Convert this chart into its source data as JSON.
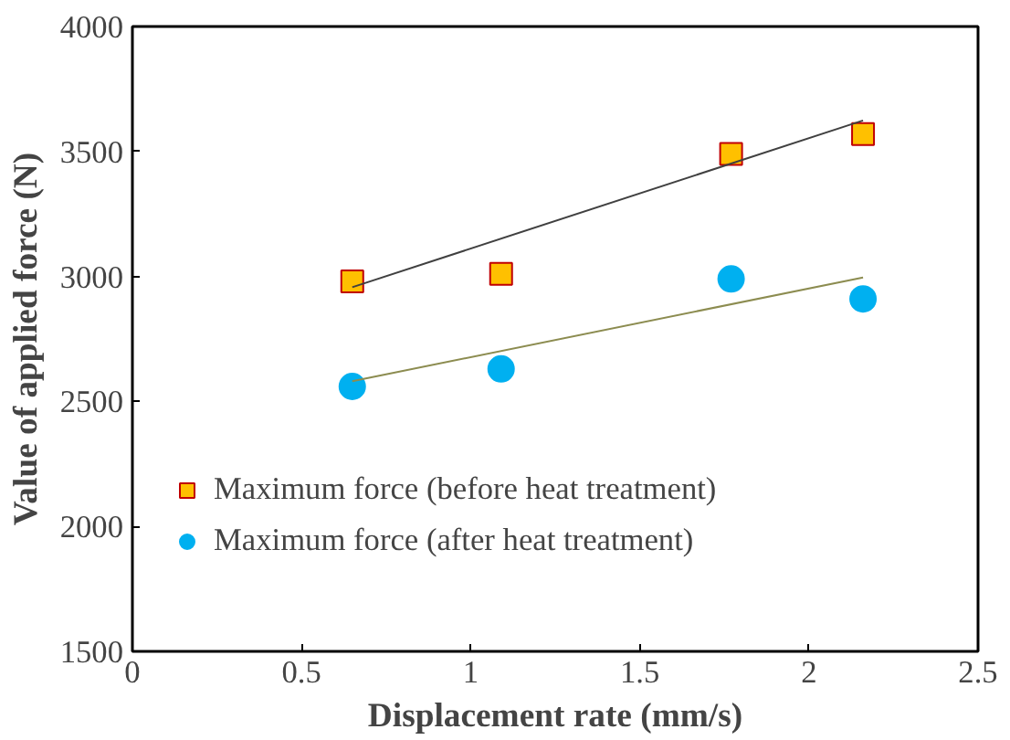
{
  "chart_data": {
    "type": "scatter",
    "xlabel": "Displacement rate (mm/s)",
    "ylabel": "Value of applied force (N)",
    "xlim": [
      0,
      2.5
    ],
    "xticks": [
      0,
      0.5,
      1,
      1.5,
      2,
      2.5
    ],
    "ylim": [
      1500,
      4000
    ],
    "yticks": [
      1500,
      2000,
      2500,
      3000,
      3500,
      4000
    ],
    "grid": false,
    "legend": "bottom left",
    "series": [
      {
        "name": "Maximum force (before heat treatment)",
        "color": "#ffc000",
        "marker": "square",
        "x": [
          0.65,
          1.09,
          1.77,
          2.16
        ],
        "values": [
          2980,
          3010,
          3490,
          3570
        ]
      },
      {
        "name": "Maximum force (after heat treatment)",
        "color": "#00b0f0",
        "marker": "circle",
        "x": [
          0.65,
          1.09,
          1.77,
          2.16
        ],
        "values": [
          2560,
          2630,
          2990,
          2910
        ]
      },
      {
        "type": "line",
        "color": "#404040",
        "x": [
          0.65,
          2.16
        ],
        "values": [
          2957,
          3624
        ]
      },
      {
        "type": "line",
        "color": "#8c8c50",
        "x": [
          0.65,
          2.16
        ],
        "values": [
          2581,
          2996
        ]
      }
    ]
  }
}
